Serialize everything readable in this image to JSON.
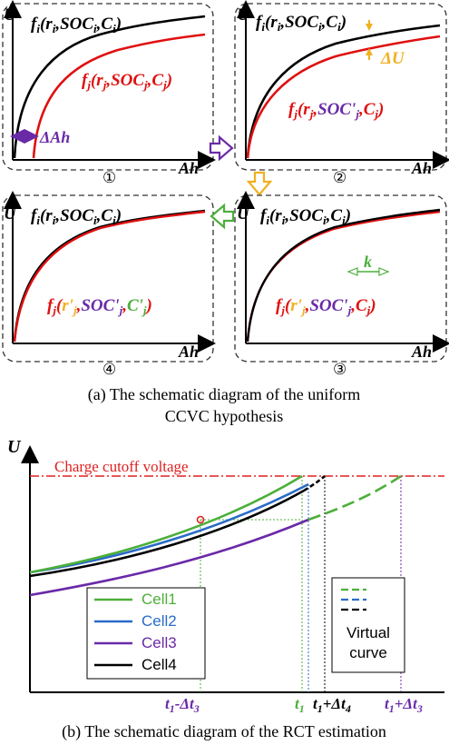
{
  "colors": {
    "black": "#000000",
    "red": "#e01010",
    "purple": "#6a2aa8",
    "orange": "#f0b020",
    "green": "#4caf3a",
    "blue": "#2a6bc8",
    "cutoff": "#e02020"
  },
  "panel_a": {
    "axis_y": "U",
    "axis_x": "Ah",
    "curve_i": "f_i(r_i, SOC_i, C_i)",
    "panels": [
      {
        "id": "1",
        "num": "①",
        "curve_j": "f_j(r_j, SOC_j, C_j)",
        "annotation": "ΔAh"
      },
      {
        "id": "2",
        "num": "②",
        "curve_j": "f_j(r_j, SOC'_j, C_j)",
        "annotation": "ΔU"
      },
      {
        "id": "3",
        "num": "③",
        "curve_j": "f_j(r'_j, SOC'_j, C_j)",
        "annotation": "k"
      },
      {
        "id": "4",
        "num": "④",
        "curve_j": "f_j(r'_j, SOC'_j, C'_j)",
        "annotation": ""
      }
    ],
    "caption_line1": "(a) The schematic diagram of the uniform",
    "caption_line2": "CCVC hypothesis"
  },
  "panel_b": {
    "axis_y": "U",
    "cutoff_label": "Charge cutoff voltage",
    "legend": [
      {
        "name": "Cell1",
        "color": "#4caf3a"
      },
      {
        "name": "Cell2",
        "color": "#2a6bc8"
      },
      {
        "name": "Cell3",
        "color": "#6a2aa8"
      },
      {
        "name": "Cell4",
        "color": "#000000"
      }
    ],
    "virtual_label_1": "Virtual",
    "virtual_label_2": "curve",
    "ticks": [
      "t1-Δt3",
      "t1",
      "t1+Δt4",
      "t1+Δt3"
    ],
    "caption": "(b) The schematic diagram of the RCT estimation"
  }
}
